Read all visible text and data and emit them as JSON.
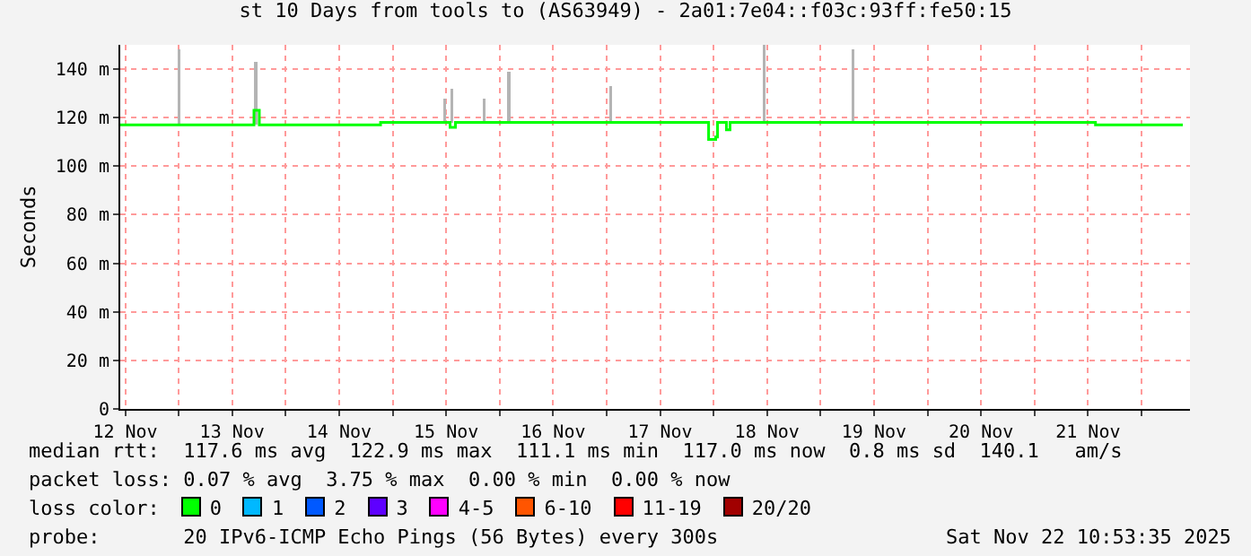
{
  "chart_data": {
    "type": "line",
    "title": "st 10 Days from tools to (AS63949) - 2a01:7e04::f03c:93ff:fe50:15",
    "ylabel": "Seconds",
    "xlim": [
      "2025-11-12T10:53",
      "2025-11-22T10:53"
    ],
    "xticks": [
      {
        "value": "2025-11-12T12:00",
        "label": "12 Nov"
      },
      {
        "value": "2025-11-13T00:00",
        "label": null
      },
      {
        "value": "2025-11-13T12:00",
        "label": "13 Nov"
      },
      {
        "value": "2025-11-14T00:00",
        "label": null
      },
      {
        "value": "2025-11-14T12:00",
        "label": "14 Nov"
      },
      {
        "value": "2025-11-15T00:00",
        "label": null
      },
      {
        "value": "2025-11-15T12:00",
        "label": "15 Nov"
      },
      {
        "value": "2025-11-16T00:00",
        "label": null
      },
      {
        "value": "2025-11-16T12:00",
        "label": "16 Nov"
      },
      {
        "value": "2025-11-17T00:00",
        "label": null
      },
      {
        "value": "2025-11-17T12:00",
        "label": "17 Nov"
      },
      {
        "value": "2025-11-18T00:00",
        "label": null
      },
      {
        "value": "2025-11-18T12:00",
        "label": "18 Nov"
      },
      {
        "value": "2025-11-19T00:00",
        "label": null
      },
      {
        "value": "2025-11-19T12:00",
        "label": "19 Nov"
      },
      {
        "value": "2025-11-20T00:00",
        "label": null
      },
      {
        "value": "2025-11-20T12:00",
        "label": "20 Nov"
      },
      {
        "value": "2025-11-21T00:00",
        "label": null
      },
      {
        "value": "2025-11-21T12:00",
        "label": "21 Nov"
      },
      {
        "value": "2025-11-22T00:00",
        "label": null
      }
    ],
    "ylim": [
      0,
      150
    ],
    "yticks": [
      0,
      {
        "value": 20,
        "label": "20 m"
      },
      {
        "value": 40,
        "label": "40 m"
      },
      {
        "value": 60,
        "label": "60 m"
      },
      {
        "value": 80,
        "label": "80 m"
      },
      {
        "value": 100,
        "label": "100 m"
      },
      {
        "value": 120,
        "label": "120 m"
      },
      {
        "value": 140,
        "label": "140 m"
      }
    ],
    "grid": true,
    "series": [
      {
        "type": "bar",
        "color": "#b4b4b4",
        "x": [
          "2025-11-13T00:05",
          "2025-11-13T17:17",
          "2025-11-15T11:41",
          "2025-11-15T13:17",
          "2025-11-15T20:29",
          "2025-11-16T02:05",
          "2025-11-17T00:53",
          "2025-11-18T11:17",
          "2025-11-19T07:17"
        ],
        "base": [
          117,
          117,
          118,
          118,
          118,
          118,
          118,
          118,
          118
        ],
        "values": [
          31,
          26,
          10,
          14,
          10,
          21,
          15,
          32,
          30
        ]
      },
      {
        "color": "#00ff00",
        "x": [
          "2025-11-12T10:53",
          "2025-11-13T16:05",
          "2025-11-13T16:53",
          "2025-11-13T18:05",
          "2025-11-14T19:17",
          "2025-11-14T21:17",
          "2025-11-15T12:05",
          "2025-11-15T12:53",
          "2025-11-15T14:05",
          "2025-11-17T22:29",
          "2025-11-17T22:53",
          "2025-11-18T00:29",
          "2025-11-18T00:53",
          "2025-11-18T02:53",
          "2025-11-18T03:41",
          "2025-11-21T12:53",
          "2025-11-21T13:41",
          "2025-11-22T09:17"
        ],
        "values": [
          117,
          117,
          123,
          117,
          117,
          118,
          118,
          116,
          118,
          118,
          111,
          112,
          118,
          115,
          118,
          118,
          117,
          117
        ]
      }
    ],
    "annotations": [
      "median rtt:  117.6 ms avg  122.9 ms max  111.1 ms min  117.0 ms now  0.8 ms sd  140.1   am/s",
      "packet loss: 0.07 % avg  3.75 % max  0.00 % min  0.00 % now",
      "loss color:",
      "0",
      "1",
      "2",
      "3",
      "4-5",
      "6-10",
      "11-19",
      "20/20",
      "probe:       20 IPv6-ICMP Echo Pings (56 Bytes) every 300s",
      "Sat Nov 22 10:53:35 2025"
    ]
  }
}
